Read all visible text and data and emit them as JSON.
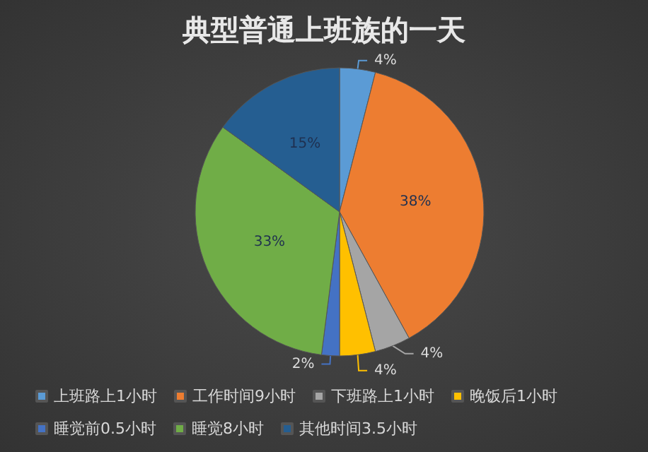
{
  "chart_data": {
    "type": "pie",
    "title": "典型普通上班族的一天",
    "categories": [
      "上班路上1小时",
      "工作时间9小时",
      "下班路上1小时",
      "晚饭后1小时",
      "睡觉前0.5小时",
      "睡觉8小时",
      "其他时间3.5小时"
    ],
    "values": [
      4,
      38,
      4,
      4,
      2,
      33,
      15
    ],
    "colors": [
      "#5b9bd5",
      "#ed7d31",
      "#a5a5a5",
      "#ffc000",
      "#4472c4",
      "#70ad47",
      "#255e91"
    ],
    "value_labels": [
      "4%",
      "38%",
      "4%",
      "4%",
      "2%",
      "33%",
      "15%"
    ],
    "legend": "bottom"
  }
}
